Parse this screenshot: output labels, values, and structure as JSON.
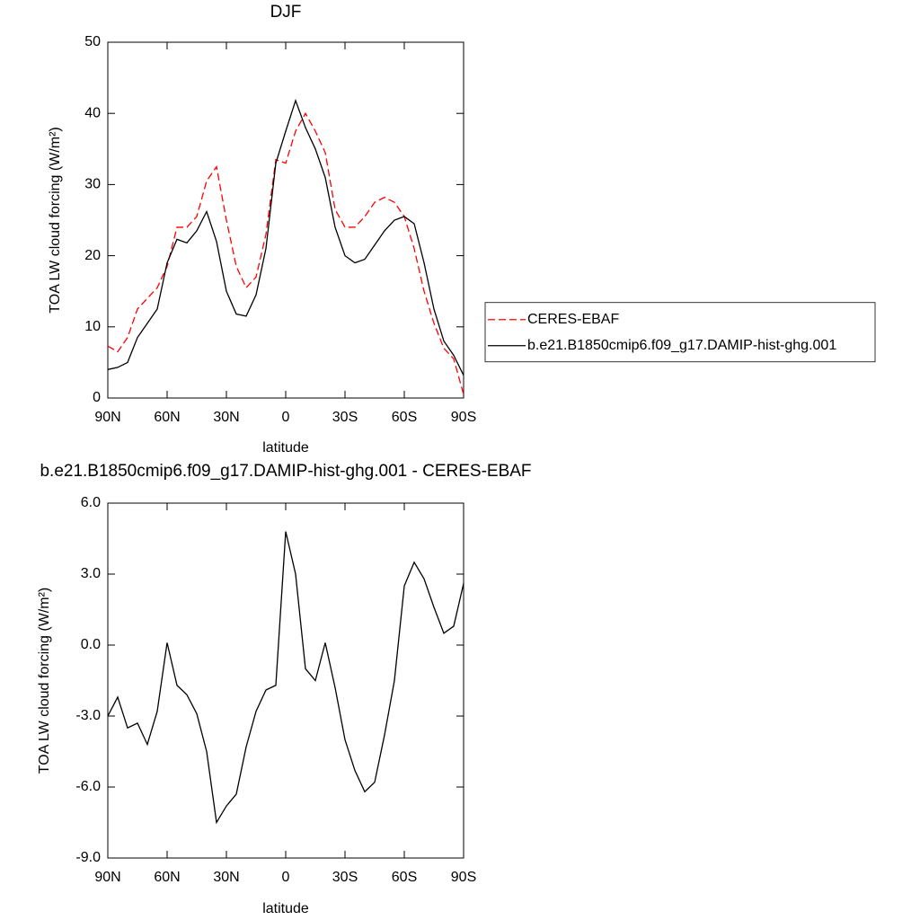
{
  "chart_data": [
    {
      "type": "line",
      "title": "DJF",
      "x_label": "latitude",
      "y_label": "TOA LW cloud forcing (W/m²)",
      "x": [
        90,
        85,
        80,
        75,
        70,
        65,
        60,
        55,
        50,
        45,
        40,
        35,
        30,
        25,
        20,
        15,
        10,
        5,
        0,
        -5,
        -10,
        -15,
        -20,
        -25,
        -30,
        -35,
        -40,
        -45,
        -50,
        -55,
        -60,
        -65,
        -70,
        -75,
        -80,
        -85,
        -90
      ],
      "series": [
        {
          "name": "CERES-EBAF",
          "color": "#ff0000",
          "dashed": true,
          "values": [
            7.3,
            6.5,
            8.5,
            12.5,
            14,
            15.5,
            18.5,
            24,
            24,
            25.5,
            30.5,
            32.5,
            25,
            18.5,
            15.5,
            17,
            23,
            33.5,
            33,
            37.5,
            40,
            37.5,
            34.5,
            26.5,
            24,
            24,
            25.5,
            27.5,
            28.2,
            27.5,
            25.5,
            21,
            15,
            10.5,
            7,
            5.5,
            0.5
          ]
        },
        {
          "name": "b.e21.B1850cmip6.f09_g17.DAMIP-hist-ghg.001",
          "color": "#000000",
          "dashed": false,
          "values": [
            4.0,
            4.3,
            5.0,
            8.5,
            10.5,
            12.5,
            19,
            22.3,
            21.8,
            23.5,
            26.2,
            22,
            15,
            11.8,
            11.5,
            14.5,
            21,
            33,
            37.5,
            41.8,
            38,
            35,
            31,
            24,
            20,
            19,
            19.5,
            21.5,
            23.5,
            25,
            25.5,
            24.5,
            19,
            12.5,
            8,
            6,
            3.2
          ]
        }
      ],
      "xlim": [
        90,
        -90
      ],
      "xticks": [
        {
          "value": 90,
          "label": "90N"
        },
        {
          "value": 60,
          "label": "60N"
        },
        {
          "value": 30,
          "label": "30N"
        },
        0,
        {
          "value": -30,
          "label": "30S"
        },
        {
          "value": -60,
          "label": "60S"
        },
        {
          "value": -90,
          "label": "90S"
        }
      ],
      "ylim": [
        0,
        50
      ],
      "yticks": [
        0,
        10,
        20,
        30,
        40,
        50
      ],
      "legend": "right"
    },
    {
      "type": "line",
      "title": "b.e21.B1850cmip6.f09_g17.DAMIP-hist-ghg.001 - CERES-EBAF",
      "x_label": "latitude",
      "y_label": "TOA LW cloud forcing (W/m²)",
      "x": [
        90,
        85,
        80,
        75,
        70,
        65,
        60,
        55,
        50,
        45,
        40,
        35,
        30,
        25,
        20,
        15,
        10,
        5,
        0,
        -5,
        -10,
        -15,
        -20,
        -25,
        -30,
        -35,
        -40,
        -45,
        -50,
        -55,
        -60,
        -65,
        -70,
        -75,
        -80,
        -85,
        -90
      ],
      "values": [
        -3.0,
        -2.2,
        -3.5,
        -3.3,
        -4.2,
        -2.8,
        0.1,
        -1.7,
        -2.1,
        -2.9,
        -4.5,
        -7.5,
        -6.8,
        -6.3,
        -4.3,
        -2.8,
        -1.9,
        -1.7,
        4.8,
        3.0,
        -1.0,
        -1.5,
        0.1,
        -1.8,
        -4.0,
        -5.3,
        -6.2,
        -5.8,
        -3.8,
        -1.5,
        2.5,
        3.5,
        2.8,
        1.6,
        0.5,
        0.8,
        2.6
      ],
      "color": "#000000",
      "xlim": [
        90,
        -90
      ],
      "xticks": [
        {
          "value": 90,
          "label": "90N"
        },
        {
          "value": 60,
          "label": "60N"
        },
        {
          "value": 30,
          "label": "30N"
        },
        0,
        {
          "value": -30,
          "label": "30S"
        },
        {
          "value": -60,
          "label": "60S"
        },
        {
          "value": -90,
          "label": "90S"
        }
      ],
      "ylim": [
        -9,
        6
      ],
      "yticks": [
        {
          "value": -9,
          "label": "-9.0"
        },
        {
          "value": -6,
          "label": "-6.0"
        },
        {
          "value": -3,
          "label": "-3.0"
        },
        {
          "value": 0,
          "label": "0.0"
        },
        {
          "value": 3,
          "label": "3.0"
        },
        {
          "value": 6,
          "label": "6.0"
        }
      ]
    }
  ]
}
